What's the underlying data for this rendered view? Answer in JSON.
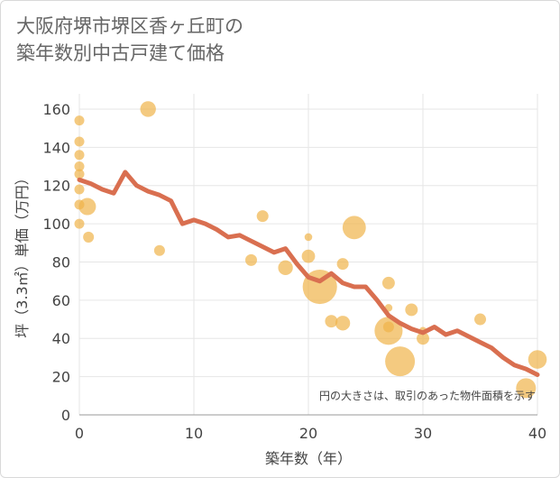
{
  "chart_data": {
    "type": "scatter",
    "title_lines": [
      "大阪府堺市堺区香ヶ丘町の",
      "築年数別中古戸建て価格"
    ],
    "xlabel": "築年数（年）",
    "ylabel": "坪（3.3㎡）単価（万円）",
    "xlim": [
      0,
      40
    ],
    "ylim": [
      0,
      168
    ],
    "x_ticks": [
      0,
      10,
      20,
      30,
      40
    ],
    "y_ticks": [
      0,
      20,
      40,
      60,
      80,
      100,
      120,
      140,
      160
    ],
    "grid": true,
    "note": "円の大きさは、取引のあった物件面積を示す",
    "colors": {
      "bubble": "#f0b44a",
      "line": "#d96f50",
      "grid": "#e6e6e6"
    },
    "bubbles": [
      {
        "x": 0,
        "y": 154,
        "size": 1
      },
      {
        "x": 0,
        "y": 143,
        "size": 1
      },
      {
        "x": 0,
        "y": 136,
        "size": 1
      },
      {
        "x": 0,
        "y": 130,
        "size": 1
      },
      {
        "x": 0,
        "y": 126,
        "size": 1
      },
      {
        "x": 0,
        "y": 118,
        "size": 1
      },
      {
        "x": 0,
        "y": 110,
        "size": 1
      },
      {
        "x": 0,
        "y": 100,
        "size": 1
      },
      {
        "x": 0.7,
        "y": 109,
        "size": 3
      },
      {
        "x": 0.8,
        "y": 93,
        "size": 1.2
      },
      {
        "x": 6,
        "y": 160,
        "size": 2.5
      },
      {
        "x": 7,
        "y": 86,
        "size": 1.2
      },
      {
        "x": 15,
        "y": 81,
        "size": 1.4
      },
      {
        "x": 16,
        "y": 104,
        "size": 1.4
      },
      {
        "x": 18,
        "y": 77,
        "size": 2.2
      },
      {
        "x": 20,
        "y": 93,
        "size": 0.6
      },
      {
        "x": 20,
        "y": 83,
        "size": 1.8
      },
      {
        "x": 21,
        "y": 67,
        "size": 12
      },
      {
        "x": 22,
        "y": 49,
        "size": 1.6
      },
      {
        "x": 23,
        "y": 79,
        "size": 1.4
      },
      {
        "x": 23,
        "y": 48,
        "size": 2.2
      },
      {
        "x": 24,
        "y": 98,
        "size": 5.5
      },
      {
        "x": 27,
        "y": 69,
        "size": 1.6
      },
      {
        "x": 27,
        "y": 56,
        "size": 0.6
      },
      {
        "x": 27,
        "y": 46,
        "size": 1.2
      },
      {
        "x": 27,
        "y": 44,
        "size": 8
      },
      {
        "x": 28,
        "y": 28,
        "size": 9
      },
      {
        "x": 29,
        "y": 55,
        "size": 1.6
      },
      {
        "x": 30,
        "y": 40,
        "size": 1.6
      },
      {
        "x": 30,
        "y": 44,
        "size": 0.6
      },
      {
        "x": 35,
        "y": 50,
        "size": 1.4
      },
      {
        "x": 39,
        "y": 14,
        "size": 4
      },
      {
        "x": 40,
        "y": 29,
        "size": 3.5
      }
    ],
    "trend": {
      "x": [
        0,
        1,
        2,
        3,
        4,
        5,
        6,
        7,
        8,
        9,
        10,
        11,
        12,
        13,
        14,
        15,
        16,
        17,
        18,
        19,
        20,
        21,
        22,
        23,
        24,
        25,
        26,
        27,
        28,
        29,
        30,
        31,
        32,
        33,
        34,
        35,
        36,
        37,
        38,
        39,
        40
      ],
      "y": [
        123,
        121,
        118,
        116,
        127,
        120,
        117,
        115,
        112,
        100,
        102,
        100,
        97,
        93,
        94,
        91,
        88,
        85,
        87,
        79,
        72,
        70,
        74,
        69,
        67,
        67,
        60,
        52,
        48,
        45,
        43,
        46,
        42,
        44,
        41,
        38,
        35,
        30,
        26,
        24,
        21
      ]
    }
  }
}
